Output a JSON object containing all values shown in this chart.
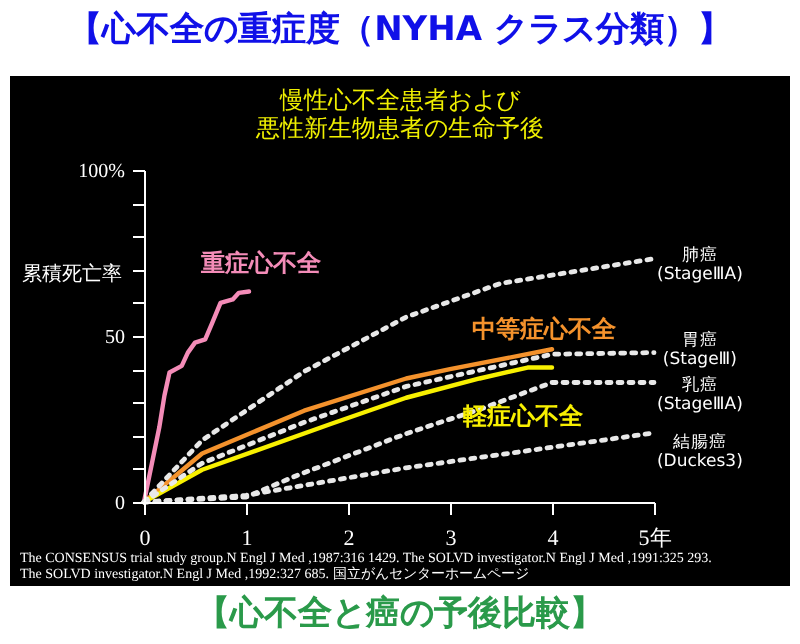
{
  "chart_data": {
    "type": "line",
    "title": "【心不全の重症度（NYHA クラス分類）】",
    "subtitle": "慢性心不全患者および悪性新生物患者の生命予後",
    "ylabel": "累積死亡率",
    "annotations": [
      "The CONSENSUS trial study group.N Engl J Med ,1987:316 1429.  The SOLVD investigator.N Engl J Med ,1991:325 293.",
      "The SOLVD investigator.N Engl J Med ,1992:327 685.     国立がんセンターホームページ",
      "【心不全と癌の予後比較】"
    ],
    "xlim": [
      0,
      5
    ],
    "xticks": [
      0,
      1,
      2,
      3,
      4,
      {
        "value": 5,
        "label": "5年"
      }
    ],
    "ylim": [
      0,
      100
    ],
    "yticks": [
      0,
      {
        "value": 10,
        "label": null
      },
      {
        "value": 20,
        "label": null
      },
      {
        "value": 30,
        "label": null
      },
      {
        "value": 40,
        "label": null
      },
      50,
      {
        "value": 60,
        "label": null
      },
      {
        "value": 70,
        "label": null
      },
      {
        "value": 80,
        "label": null
      },
      {
        "value": 90,
        "label": null
      },
      {
        "value": 100,
        "label": "100%"
      }
    ],
    "grid": false,
    "marker": "none",
    "series": [
      {
        "name": "重症心不全",
        "color": "#f48cb8",
        "line_style": "solid",
        "x": [
          0,
          0.15,
          0.2,
          0.25,
          0.37,
          0.43,
          0.5,
          0.6,
          0.67,
          0.75,
          0.87,
          0.93,
          1.03
        ],
        "values": [
          0,
          22.5,
          32,
          39,
          41,
          45,
          48,
          49,
          54,
          60,
          61,
          63,
          63.4
        ]
      },
      {
        "name": "中等症心不全",
        "color": "#f4922c",
        "line_style": "solid",
        "x": [
          0,
          0.57,
          1.57,
          2.57,
          3,
          4
        ],
        "values": [
          0,
          14.6,
          27.5,
          37.2,
          40,
          46
        ]
      },
      {
        "name": "軽症心不全",
        "color": "#f8f000",
        "line_style": "solid",
        "x": [
          0,
          0.57,
          1.83,
          2.57,
          3.29,
          3.76,
          4
        ],
        "values": [
          0,
          9.7,
          23.5,
          31.4,
          37.2,
          40.5,
          40.5
        ]
      },
      {
        "name": "肺癌 (StageⅢA)",
        "color": "#e8e8e8",
        "line_style": "dotted",
        "x": [
          0,
          0.57,
          1.57,
          2.57,
          3.49,
          5
        ],
        "values": [
          0,
          18.6,
          39.3,
          55.7,
          65.8,
          73.3
        ]
      },
      {
        "name": "胃癌 (StageⅢ)",
        "color": "#e8e8e8",
        "line_style": "dotted",
        "x": [
          0,
          0.57,
          1.57,
          2.57,
          4,
          5
        ],
        "values": [
          0,
          11.7,
          24,
          34.8,
          44.5,
          45
        ]
      },
      {
        "name": "乳癌 (StageⅢA)",
        "color": "#e8e8e8",
        "line_style": "dotted",
        "x": [
          0,
          1,
          1.5,
          2.57,
          3.3,
          4,
          5
        ],
        "values": [
          0,
          1.5,
          8,
          20.6,
          28,
          36,
          36
        ]
      },
      {
        "name": "結腸癌 (Duckes3)",
        "color": "#e8e8e8",
        "line_style": "dotted",
        "x": [
          0,
          1,
          2.57,
          5
        ],
        "values": [
          0,
          2,
          10.3,
          20.8
        ]
      }
    ]
  }
}
